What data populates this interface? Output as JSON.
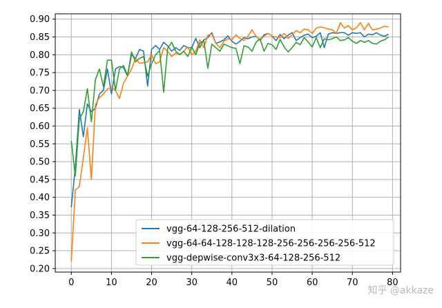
{
  "chart_data": {
    "type": "line",
    "xlim": [
      -4,
      82
    ],
    "ylim": [
      0.19,
      0.915
    ],
    "x_ticks": [
      0,
      10,
      20,
      30,
      40,
      50,
      60,
      70,
      80
    ],
    "y_ticks": [
      0.2,
      0.25,
      0.3,
      0.35,
      0.4,
      0.45,
      0.5,
      0.55,
      0.6,
      0.65,
      0.7,
      0.75,
      0.8,
      0.85,
      0.9
    ],
    "grid": true,
    "legend_position": "lower-right",
    "series": [
      {
        "name": "vgg-64-128-256-512-dilation",
        "color": "#1f77b4",
        "values": [
          0.372,
          0.484,
          0.646,
          0.57,
          0.662,
          0.64,
          0.65,
          0.69,
          0.7,
          0.76,
          0.69,
          0.76,
          0.767,
          0.764,
          0.74,
          0.8,
          0.79,
          0.815,
          0.81,
          0.712,
          0.815,
          0.826,
          0.815,
          0.835,
          0.825,
          0.81,
          0.82,
          0.812,
          0.826,
          0.82,
          0.82,
          0.846,
          0.82,
          0.842,
          0.848,
          0.862,
          0.832,
          0.836,
          0.842,
          0.853,
          0.838,
          0.83,
          0.838,
          0.848,
          0.845,
          0.85,
          0.852,
          0.841,
          0.856,
          0.86,
          0.852,
          0.84,
          0.857,
          0.845,
          0.855,
          0.862,
          0.84,
          0.848,
          0.855,
          0.858,
          0.848,
          0.852,
          0.862,
          0.82,
          0.858,
          0.862,
          0.86,
          0.862,
          0.862,
          0.855,
          0.862,
          0.86,
          0.862,
          0.85,
          0.858,
          0.856,
          0.862,
          0.855,
          0.852,
          0.858
        ]
      },
      {
        "name": "vgg-64-64-128-128-128-256-256-256-256-512",
        "color": "#ff7f0e",
        "values": [
          0.22,
          0.42,
          0.43,
          0.51,
          0.595,
          0.45,
          0.66,
          0.68,
          0.69,
          0.703,
          0.71,
          0.7,
          0.677,
          0.72,
          0.74,
          0.76,
          0.79,
          0.776,
          0.778,
          0.78,
          0.8,
          0.775,
          0.78,
          0.82,
          0.81,
          0.795,
          0.805,
          0.802,
          0.81,
          0.822,
          0.8,
          0.81,
          0.842,
          0.82,
          0.855,
          0.858,
          0.832,
          0.82,
          0.838,
          0.845,
          0.842,
          0.856,
          0.846,
          0.84,
          0.852,
          0.87,
          0.852,
          0.84,
          0.852,
          0.86,
          0.852,
          0.85,
          0.848,
          0.86,
          0.846,
          0.856,
          0.868,
          0.862,
          0.872,
          0.87,
          0.86,
          0.875,
          0.878,
          0.876,
          0.872,
          0.87,
          0.86,
          0.89,
          0.875,
          0.882,
          0.87,
          0.875,
          0.89,
          0.87,
          0.888,
          0.87,
          0.872,
          0.875,
          0.88,
          0.878
        ]
      },
      {
        "name": "vgg-depwise-conv3x3-64-128-256-512",
        "color": "#2ca02c",
        "values": [
          0.558,
          0.46,
          0.62,
          0.64,
          0.705,
          0.612,
          0.73,
          0.76,
          0.71,
          0.785,
          0.785,
          0.7,
          0.76,
          0.77,
          0.742,
          0.808,
          0.78,
          0.79,
          0.795,
          0.74,
          0.775,
          0.8,
          0.812,
          0.695,
          0.818,
          0.835,
          0.81,
          0.8,
          0.81,
          0.795,
          0.822,
          0.8,
          0.832,
          0.84,
          0.762,
          0.83,
          0.82,
          0.81,
          0.83,
          0.825,
          0.82,
          0.818,
          0.775,
          0.825,
          0.822,
          0.81,
          0.835,
          0.845,
          0.81,
          0.832,
          0.828,
          0.815,
          0.843,
          0.822,
          0.808,
          0.82,
          0.835,
          0.828,
          0.848,
          0.836,
          0.822,
          0.848,
          0.82,
          0.845,
          0.842,
          0.845,
          0.85,
          0.84,
          0.842,
          0.848,
          0.838,
          0.832,
          0.84,
          0.835,
          0.84,
          0.832,
          0.83,
          0.838,
          0.842,
          0.85
        ]
      }
    ]
  },
  "watermark": "知乎 @akkaze"
}
